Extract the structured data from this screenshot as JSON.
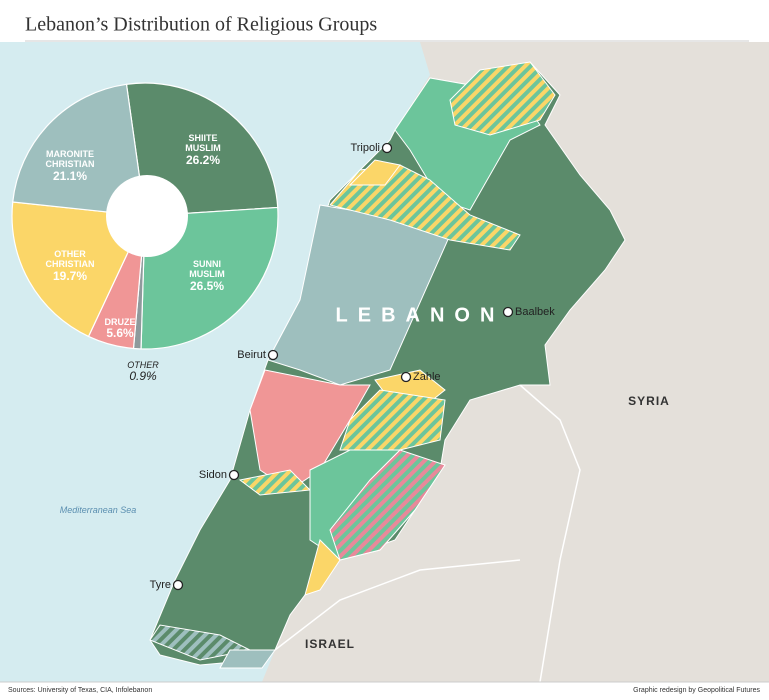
{
  "chart_data": {
    "type": "pie",
    "title": "Lebanon’s Distribution of Religious Groups",
    "categories": [
      "SHIITE MUSLIM",
      "SUNNI MUSLIM",
      "OTHER",
      "DRUZE",
      "OTHER CHRISTIAN",
      "MARONITE CHRISTIAN"
    ],
    "values": [
      26.2,
      26.5,
      0.9,
      5.6,
      19.7,
      21.1
    ],
    "value_labels": [
      "26.2%",
      "26.5%",
      "0.9%",
      "5.6%",
      "19.7%",
      "21.1%"
    ],
    "colors": [
      "#5b8b6b",
      "#6cc59b",
      "#8e9a9c",
      "#f09696",
      "#fbd668",
      "#9ebfbe"
    ]
  },
  "map": {
    "country": "LEBANON",
    "neighbors": [
      "SYRIA",
      "ISRAEL"
    ],
    "sea": "Mediterranean Sea",
    "cities": [
      "Tripoli",
      "Beirut",
      "Sidon",
      "Tyre",
      "Baalbek",
      "Zahle"
    ]
  },
  "footer": {
    "source": "Sources: University of Texas, CIA, Infolebanon",
    "credit": "Graphic redesign by Geopolitical Futures"
  }
}
